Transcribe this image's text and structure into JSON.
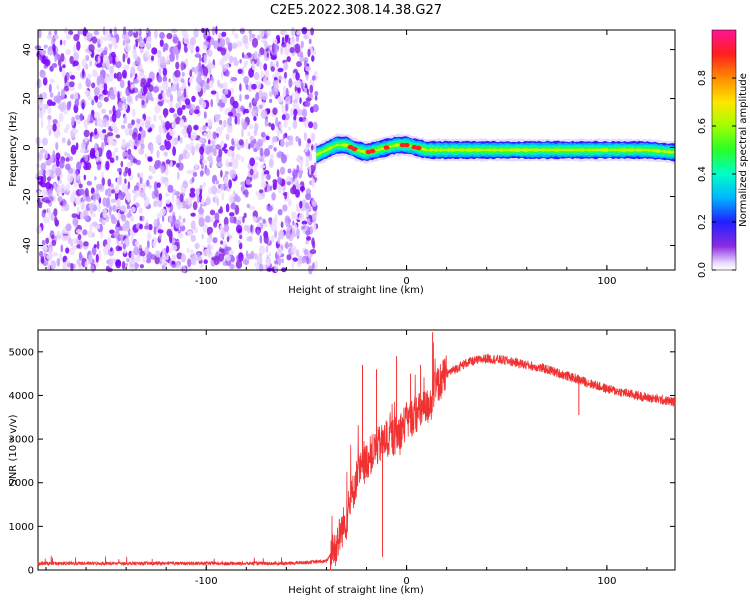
{
  "title": "C2E5.2022.308.14.38.G27",
  "chart_data": [
    {
      "type": "heatmap",
      "xlabel": "Height of straight line (km)",
      "ylabel": "Frequency (Hz)",
      "xlim": [
        -184,
        134
      ],
      "ylim": [
        -50,
        48
      ],
      "x_ticks": [
        -100,
        0,
        100
      ],
      "x_tick_labels": [
        "-100",
        "0",
        "100"
      ],
      "y_ticks": [
        40,
        20,
        0,
        -20,
        -40
      ],
      "y_tick_labels": [
        "40",
        "20",
        "0",
        "-20",
        "-40"
      ],
      "noise_region_x": [
        -184,
        -45
      ],
      "signal": {
        "x": [
          -45,
          -40,
          -35,
          -30,
          -25,
          -20,
          -15,
          -10,
          -5,
          0,
          5,
          10,
          20,
          40,
          60,
          80,
          100,
          120,
          134
        ],
        "freq": [
          -3,
          -1,
          1,
          1,
          -1,
          -2,
          -1,
          0,
          1,
          1,
          0,
          -1,
          -1,
          -1,
          -1,
          -1,
          -1,
          -1,
          -2
        ],
        "peak_x": [
          -28,
          -26,
          -19,
          -17,
          -10,
          -2,
          0,
          4,
          6
        ]
      },
      "colorbar": {
        "label": "Normalized spectral amplitude",
        "range": [
          0,
          1
        ],
        "ticks": [
          0.0,
          0.2,
          0.4,
          0.6,
          0.8
        ],
        "tick_labels": [
          "0.0",
          "0.2",
          "0.4",
          "0.6",
          "0.8"
        ]
      }
    },
    {
      "type": "line",
      "color": "#f03232",
      "xlabel": "Height of straight line (km)",
      "ylabel": "SNR (10 * v/v)",
      "xlim": [
        -184,
        134
      ],
      "ylim": [
        0,
        5500
      ],
      "x_ticks": [
        -100,
        0,
        100
      ],
      "x_tick_labels": [
        "-100",
        "0",
        "100"
      ],
      "y_ticks": [
        0,
        1000,
        2000,
        3000,
        4000,
        5000
      ],
      "y_tick_labels": [
        "0",
        "1000",
        "2000",
        "3000",
        "4000",
        "5000"
      ],
      "x": [
        -184,
        -150,
        -100,
        -60,
        -40,
        -35,
        -30,
        -25,
        -20,
        -15,
        -10,
        -5,
        0,
        5,
        10,
        15,
        20,
        30,
        40,
        50,
        60,
        70,
        80,
        90,
        100,
        110,
        120,
        134
      ],
      "y": [
        150,
        150,
        150,
        150,
        200,
        600,
        1200,
        2100,
        2500,
        2800,
        3000,
        3100,
        3400,
        3600,
        3700,
        4200,
        4500,
        4750,
        4850,
        4800,
        4700,
        4600,
        4450,
        4300,
        4150,
        4050,
        3950,
        3850
      ],
      "spikes": [
        [
          -22,
          4700
        ],
        [
          -15,
          4600
        ],
        [
          -12,
          300
        ],
        [
          -5,
          4900
        ],
        [
          2,
          4500
        ],
        [
          7,
          4700
        ],
        [
          13,
          5450
        ],
        [
          86,
          3550
        ]
      ]
    }
  ]
}
